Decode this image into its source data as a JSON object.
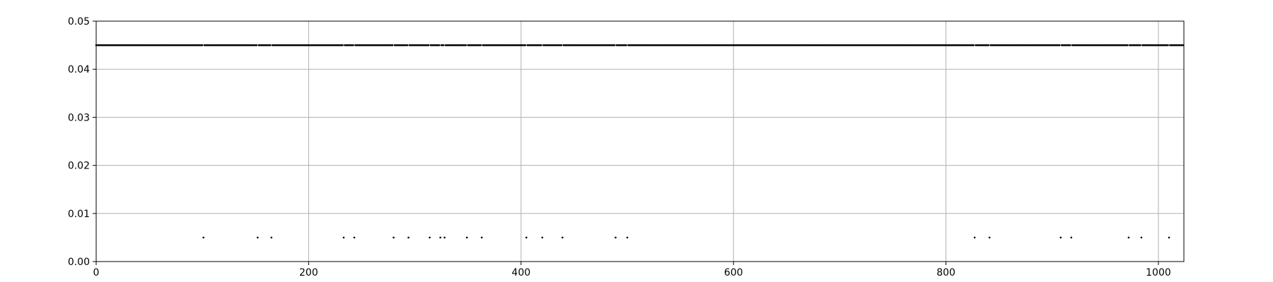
{
  "chart_data": {
    "type": "scatter",
    "title": "",
    "xlabel": "",
    "ylabel": "",
    "xlim": [
      0,
      1024
    ],
    "ylim": [
      0,
      0.05
    ],
    "x_ticks": [
      0,
      200,
      400,
      600,
      800,
      1000
    ],
    "x_tick_labels": [
      "0",
      "200",
      "400",
      "600",
      "800",
      "1000"
    ],
    "y_ticks": [
      0,
      0.01,
      0.02,
      0.03,
      0.04,
      0.05
    ],
    "y_tick_labels": [
      "0.00",
      "0.01",
      "0.02",
      "0.03",
      "0.04",
      "0.05"
    ],
    "grid": true,
    "marker_color": "#000000",
    "series": [
      {
        "high_value": 0.045,
        "low_value": 0.005,
        "x_range": [
          0,
          1023
        ],
        "low_points_x": [
          101,
          152,
          165,
          233,
          243,
          280,
          294,
          314,
          324,
          328,
          349,
          363,
          405,
          420,
          439,
          489,
          500,
          827,
          841,
          908,
          918,
          972,
          984,
          1010
        ]
      }
    ]
  }
}
